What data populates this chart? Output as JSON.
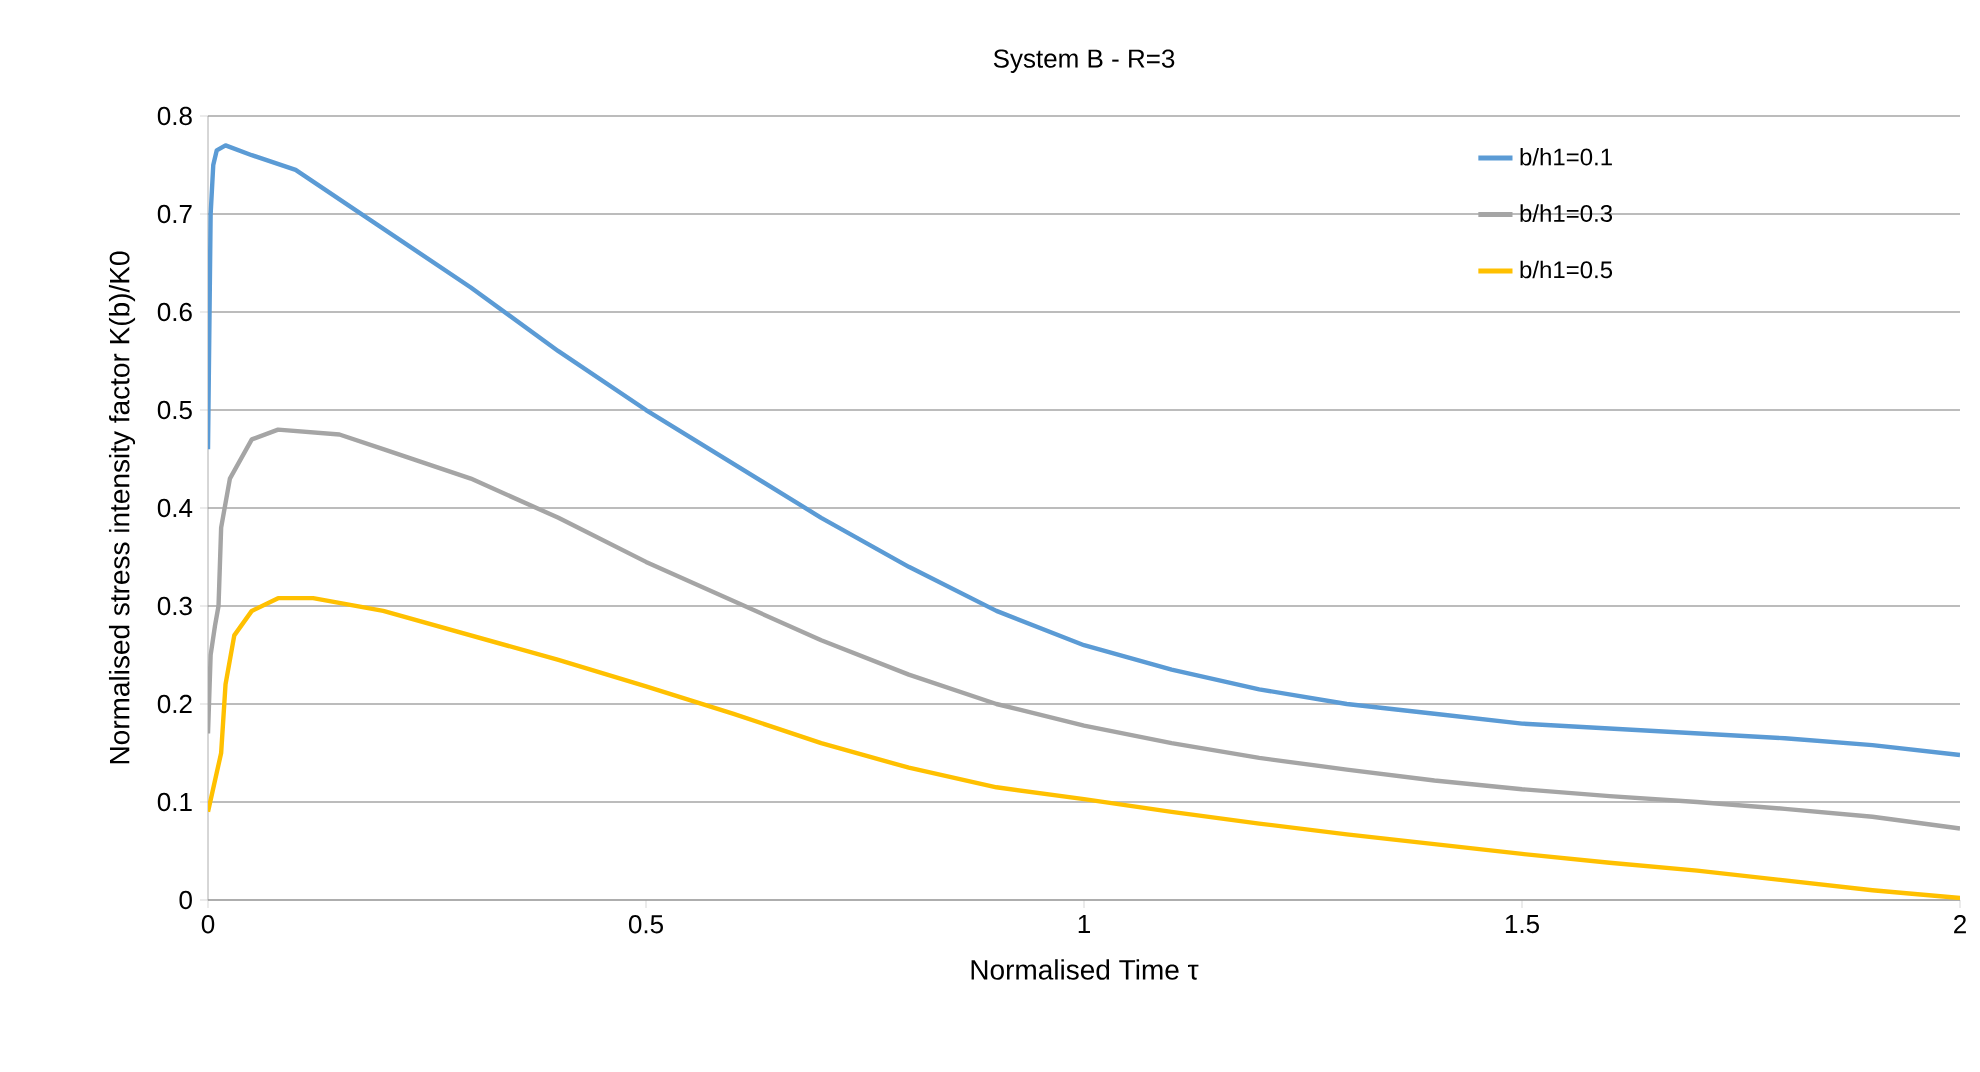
{
  "chart_data": {
    "type": "line",
    "title": "System B - R=3",
    "xlabel": "Normalised Time τ",
    "ylabel": "Normalised stress intensity factor K(b)/K0",
    "xlim": [
      0,
      2
    ],
    "xticks": [
      0,
      0.5,
      1,
      1.5,
      2
    ],
    "ylim": [
      0,
      0.8
    ],
    "yticks": [
      0,
      0.1,
      0.2,
      0.3,
      0.4,
      0.5,
      0.6,
      0.7,
      0.8
    ],
    "grid": "y",
    "legend": "top right",
    "line_style": "solid",
    "marker": "none",
    "series": [
      {
        "name": "b/h1=0.1",
        "color": "#5b9bd5",
        "x": [
          0,
          0.003,
          0.006,
          0.01,
          0.02,
          0.05,
          0.1,
          0.2,
          0.3,
          0.4,
          0.5,
          0.6,
          0.7,
          0.8,
          0.9,
          1.0,
          1.1,
          1.2,
          1.3,
          1.4,
          1.5,
          1.6,
          1.7,
          1.8,
          1.9,
          2.0
        ],
        "values": [
          0.46,
          0.7,
          0.75,
          0.765,
          0.77,
          0.76,
          0.745,
          0.685,
          0.625,
          0.56,
          0.5,
          0.445,
          0.39,
          0.34,
          0.295,
          0.26,
          0.235,
          0.215,
          0.2,
          0.19,
          0.18,
          0.175,
          0.17,
          0.165,
          0.158,
          0.148
        ]
      },
      {
        "name": "b/h1=0.3",
        "color": "#a5a5a5",
        "x": [
          0,
          0.003,
          0.008,
          0.012,
          0.015,
          0.025,
          0.05,
          0.08,
          0.15,
          0.2,
          0.3,
          0.4,
          0.5,
          0.6,
          0.7,
          0.8,
          0.9,
          1.0,
          1.1,
          1.2,
          1.3,
          1.4,
          1.5,
          1.6,
          1.7,
          1.8,
          1.9,
          2.0
        ],
        "values": [
          0.17,
          0.25,
          0.28,
          0.3,
          0.38,
          0.43,
          0.47,
          0.48,
          0.475,
          0.46,
          0.43,
          0.39,
          0.345,
          0.305,
          0.265,
          0.23,
          0.2,
          0.178,
          0.16,
          0.145,
          0.133,
          0.122,
          0.113,
          0.106,
          0.1,
          0.093,
          0.085,
          0.073
        ]
      },
      {
        "name": "b/h1=0.5",
        "color": "#ffc000",
        "x": [
          0,
          0.01,
          0.015,
          0.02,
          0.03,
          0.05,
          0.08,
          0.12,
          0.2,
          0.3,
          0.4,
          0.5,
          0.6,
          0.7,
          0.8,
          0.9,
          1.0,
          1.1,
          1.2,
          1.3,
          1.4,
          1.5,
          1.6,
          1.7,
          1.8,
          1.9,
          2.0
        ],
        "values": [
          0.09,
          0.13,
          0.15,
          0.22,
          0.27,
          0.295,
          0.308,
          0.308,
          0.295,
          0.27,
          0.245,
          0.218,
          0.19,
          0.16,
          0.135,
          0.115,
          0.103,
          0.09,
          0.078,
          0.067,
          0.057,
          0.047,
          0.038,
          0.03,
          0.02,
          0.01,
          0.002
        ]
      }
    ]
  }
}
